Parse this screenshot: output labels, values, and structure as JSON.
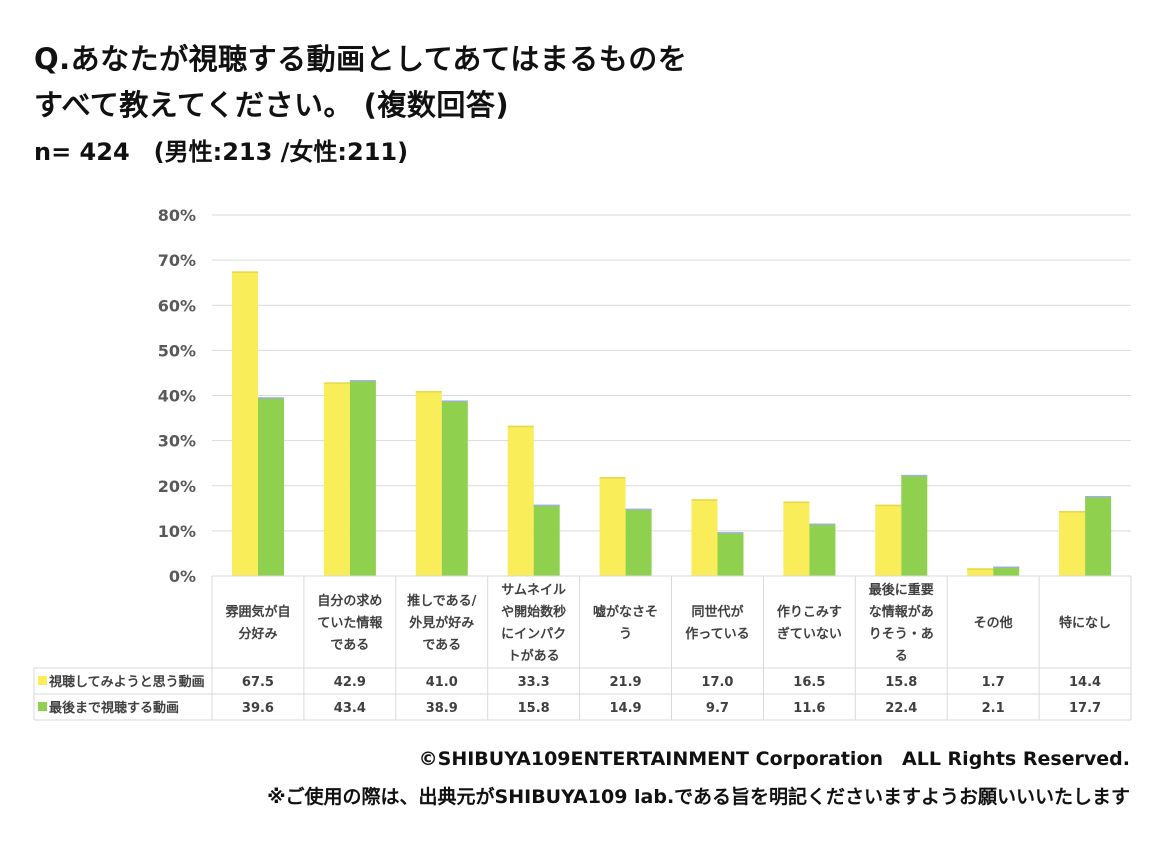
{
  "title_line1": "Q.あなたが視聴する動画としてあてはまるものを",
  "title_line2": "すべて教えてください。 (複数回答)",
  "sample": "n= 424　(男性:213 /女性:211)",
  "footer": {
    "copyright": "©SHIBUYA109ENTERTAINMENT Corporation　ALL Rights Reserved.",
    "notice": "※ご使用の際は、出典元がSHIBUYA109 lab.である旨を明記くださいますようお願いいいたします"
  },
  "chart_data": {
    "type": "bar",
    "ylim": [
      0,
      80
    ],
    "yticks": [
      "0%",
      "10%",
      "20%",
      "30%",
      "40%",
      "50%",
      "60%",
      "70%",
      "80%"
    ],
    "grid": true,
    "categories": [
      [
        "雰囲気が自",
        "分好み"
      ],
      [
        "自分の求め",
        "ていた情報",
        "である"
      ],
      [
        "推しである/",
        "外見が好み",
        "である"
      ],
      [
        "サムネイル",
        "や開始数秒",
        "にインパク",
        "トがある"
      ],
      [
        "嘘がなさそ",
        "う"
      ],
      [
        "同世代が",
        "作っている"
      ],
      [
        "作りこみす",
        "ぎていない"
      ],
      [
        "最後に重要",
        "な情報があ",
        "りそう・あ",
        "る"
      ],
      [
        "その他"
      ],
      [
        "特になし"
      ]
    ],
    "series": [
      {
        "name": "視聴してみようと思う動画",
        "color": "#f9ed5a",
        "values": [
          67.5,
          42.9,
          41.0,
          33.3,
          21.9,
          17.0,
          16.5,
          15.8,
          1.7,
          14.4
        ]
      },
      {
        "name": "最後まで視聴する動画",
        "color": "#8fd14f",
        "values": [
          39.6,
          43.4,
          38.9,
          15.8,
          14.9,
          9.7,
          11.6,
          22.4,
          2.1,
          17.7
        ]
      }
    ]
  }
}
